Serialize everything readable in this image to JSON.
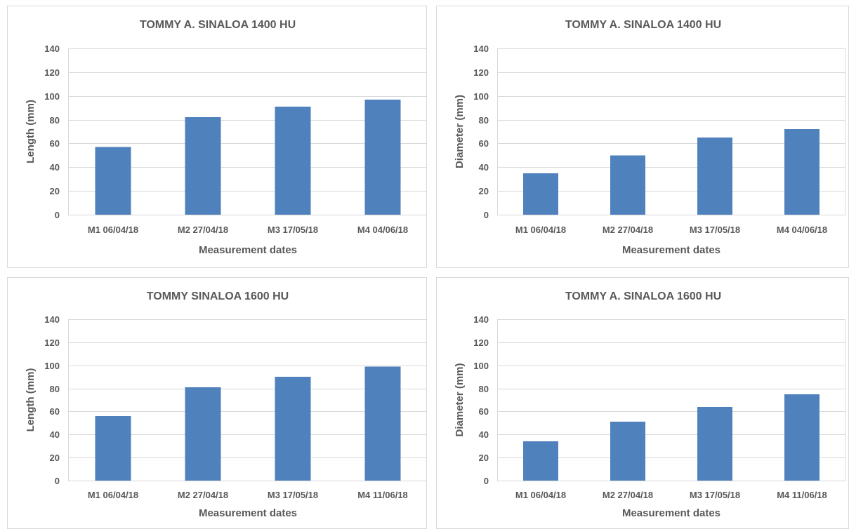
{
  "chart_data": [
    {
      "type": "bar",
      "title": "TOMMY A. SINALOA 1400 HU",
      "xlabel": "Measurement dates",
      "ylabel": "Length (mm)",
      "categories": [
        "M1 06/04/18",
        "M2 27/04/18",
        "M3 17/05/18",
        "M4 04/06/18"
      ],
      "values": [
        57,
        82,
        91,
        97
      ],
      "ylim": [
        0,
        140
      ],
      "yticks": [
        "0",
        "20",
        "40",
        "60",
        "80",
        "100",
        "120",
        "140"
      ],
      "grid": true,
      "legend": "none",
      "bar_color": "#4f81bd"
    },
    {
      "type": "bar",
      "title": "TOMMY A. SINALOA 1400 HU",
      "xlabel": "Measurement dates",
      "ylabel": "Diameter (mm)",
      "categories": [
        "M1 06/04/18",
        "M2 27/04/18",
        "M3 17/05/18",
        "M4 04/06/18"
      ],
      "values": [
        35,
        50,
        65,
        72
      ],
      "ylim": [
        0,
        140
      ],
      "yticks": [
        "0",
        "20",
        "40",
        "60",
        "80",
        "100",
        "120",
        "140"
      ],
      "grid": true,
      "legend": "none",
      "bar_color": "#4f81bd"
    },
    {
      "type": "bar",
      "title": "TOMMY SINALOA 1600 HU",
      "xlabel": "Measurement dates",
      "ylabel": "Length (mm)",
      "categories": [
        "M1 06/04/18",
        "M2 27/04/18",
        "M3 17/05/18",
        "M4 11/06/18"
      ],
      "values": [
        56,
        81,
        90,
        99
      ],
      "ylim": [
        0,
        140
      ],
      "yticks": [
        "0",
        "20",
        "40",
        "60",
        "80",
        "100",
        "120",
        "140"
      ],
      "grid": true,
      "legend": "none",
      "bar_color": "#4f81bd"
    },
    {
      "type": "bar",
      "title": "TOMMY A. SINALOA 1600 HU",
      "xlabel": "Measurement dates",
      "ylabel": "Diameter (mm)",
      "categories": [
        "M1 06/04/18",
        "M2 27/04/18",
        "M3 17/05/18",
        "M4 11/06/18"
      ],
      "values": [
        34,
        51,
        64,
        75
      ],
      "ylim": [
        0,
        140
      ],
      "yticks": [
        "0",
        "20",
        "40",
        "60",
        "80",
        "100",
        "120",
        "140"
      ],
      "grid": true,
      "legend": "none",
      "bar_color": "#4f81bd"
    }
  ]
}
